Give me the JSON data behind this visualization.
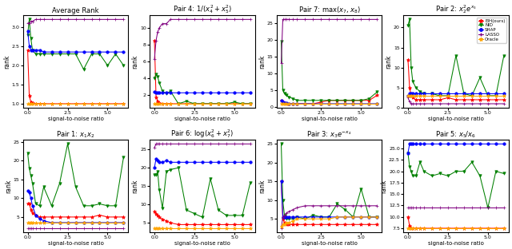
{
  "snr_values": [
    0.0,
    0.1,
    0.2,
    0.3,
    0.5,
    0.75,
    1.0,
    1.5,
    2.0,
    2.5,
    3.0,
    3.5,
    4.0,
    4.5,
    5.0,
    5.5,
    6.0
  ],
  "titles": [
    "Average Rank",
    "Pair 4: $1/(x_4^2 + x_5^2)$",
    "Pair 7: $\\max(x_7, x_8)$",
    "Pair 2: $x_2^2 e^{x_3}$",
    "Pair 1: $x_1 x_2$",
    "Pair 6: $\\log(x_6^2 + x_7^2)$",
    "Pair 3: $x_3 e^{-x_4}$",
    "Pair 5: $x_5/x_6$"
  ],
  "avg_rank": {
    "EIH": [
      2.4,
      1.2,
      1.05,
      1.02,
      1.0,
      1.0,
      1.0,
      1.0,
      1.0,
      1.0,
      1.0,
      1.0,
      1.0,
      1.0,
      1.0,
      1.0,
      1.0
    ],
    "NID": [
      2.8,
      3.2,
      2.7,
      2.4,
      2.3,
      2.3,
      2.3,
      2.3,
      2.3,
      2.3,
      2.3,
      1.9,
      2.3,
      2.3,
      2.0,
      2.3,
      2.0
    ],
    "SHAP": [
      2.9,
      2.5,
      2.4,
      2.4,
      2.4,
      2.4,
      2.35,
      2.35,
      2.35,
      2.35,
      2.35,
      2.35,
      2.35,
      2.35,
      2.35,
      2.35,
      2.35
    ],
    "LASSO": [
      3.1,
      3.1,
      3.15,
      3.15,
      3.2,
      3.2,
      3.2,
      3.2,
      3.2,
      3.2,
      3.2,
      3.2,
      3.2,
      3.2,
      3.2,
      3.2,
      3.2
    ],
    "Oracle": [
      1.0,
      1.0,
      1.0,
      1.0,
      1.0,
      1.0,
      1.0,
      1.0,
      1.0,
      1.0,
      1.0,
      1.0,
      1.0,
      1.0,
      1.0,
      1.0,
      1.0
    ]
  },
  "pair4": {
    "EIH": [
      8.5,
      1.8,
      1.3,
      1.1,
      1.0,
      1.0,
      1.0,
      1.0,
      1.0,
      1.0,
      1.0,
      1.0,
      1.0,
      1.0,
      1.0,
      1.0,
      1.0
    ],
    "NID": [
      4.0,
      4.5,
      4.2,
      3.5,
      2.5,
      2.2,
      2.5,
      1.0,
      1.3,
      1.0,
      1.0,
      1.0,
      1.0,
      1.0,
      1.2,
      1.0,
      1.0
    ],
    "SHAP": [
      2.4,
      2.3,
      2.3,
      2.3,
      2.3,
      2.3,
      2.3,
      2.3,
      2.3,
      2.3,
      2.3,
      2.3,
      2.3,
      2.3,
      2.3,
      2.3,
      2.3
    ],
    "LASSO": [
      6.3,
      8.5,
      9.5,
      10.0,
      10.5,
      10.5,
      11.0,
      11.0,
      11.0,
      11.0,
      11.0,
      11.0,
      11.0,
      11.0,
      11.0,
      11.0,
      11.0
    ],
    "Oracle": [
      1.0,
      1.0,
      1.0,
      1.0,
      1.0,
      1.0,
      1.0,
      1.0,
      1.0,
      1.0,
      1.0,
      1.0,
      1.0,
      1.0,
      1.0,
      1.0,
      1.0
    ]
  },
  "pair7": {
    "EIH": [
      2.0,
      1.5,
      1.2,
      1.0,
      1.0,
      1.0,
      1.0,
      1.0,
      1.0,
      1.5,
      2.0,
      2.0,
      2.0,
      2.0,
      2.0,
      2.0,
      3.5
    ],
    "NID": [
      19.5,
      5.0,
      4.0,
      3.5,
      3.0,
      2.5,
      2.0,
      2.0,
      2.0,
      2.0,
      2.0,
      2.0,
      2.0,
      2.0,
      2.0,
      2.5,
      4.5
    ],
    "SHAP": [
      2.0,
      1.5,
      1.3,
      1.2,
      1.1,
      1.0,
      1.0,
      1.0,
      1.0,
      1.0,
      1.0,
      1.0,
      1.0,
      1.0,
      1.0,
      1.0,
      1.0
    ],
    "LASSO": [
      13.0,
      26.0,
      26.0,
      26.0,
      26.0,
      26.0,
      26.0,
      26.0,
      26.0,
      26.0,
      26.0,
      26.0,
      26.0,
      26.0,
      26.0,
      26.0,
      26.0
    ],
    "Oracle": [
      1.0,
      1.0,
      1.0,
      1.0,
      1.0,
      1.0,
      1.0,
      1.0,
      1.0,
      1.0,
      1.0,
      1.0,
      1.0,
      1.0,
      1.0,
      1.0,
      1.0
    ]
  },
  "pair2": {
    "EIH": [
      12.0,
      5.0,
      3.0,
      2.5,
      2.0,
      2.0,
      2.0,
      2.0,
      2.0,
      2.5,
      2.0,
      2.0,
      2.0,
      2.0,
      2.0,
      2.0,
      2.0
    ],
    "NID": [
      20.5,
      22.0,
      10.0,
      6.5,
      5.0,
      4.0,
      3.5,
      3.5,
      3.0,
      3.0,
      13.0,
      3.5,
      3.0,
      7.5,
      3.0,
      3.0,
      13.0
    ],
    "SHAP": [
      3.0,
      3.5,
      3.5,
      3.5,
      3.5,
      3.5,
      3.5,
      3.5,
      3.5,
      3.5,
      3.5,
      3.5,
      3.5,
      3.5,
      3.5,
      3.5,
      3.5
    ],
    "LASSO": [
      2.5,
      1.5,
      1.0,
      1.0,
      1.0,
      1.0,
      1.0,
      1.0,
      1.0,
      1.0,
      1.0,
      1.0,
      1.0,
      1.0,
      1.0,
      1.0,
      1.0
    ],
    "Oracle": [
      3.0,
      3.0,
      3.0,
      3.0,
      3.0,
      3.0,
      3.0,
      3.0,
      3.0,
      3.0,
      3.0,
      3.0,
      3.0,
      3.0,
      3.0,
      3.0,
      3.0
    ]
  },
  "pair1": {
    "EIH": [
      8.5,
      8.5,
      7.0,
      6.0,
      5.5,
      5.0,
      5.0,
      5.0,
      5.0,
      5.0,
      5.0,
      5.0,
      5.0,
      5.5,
      5.0,
      5.0,
      5.0
    ],
    "NID": [
      22.0,
      18.0,
      16.0,
      14.0,
      8.5,
      8.0,
      13.0,
      8.0,
      14.0,
      24.5,
      13.0,
      8.0,
      8.0,
      8.5,
      8.0,
      8.0,
      21.0
    ],
    "SHAP": [
      12.0,
      11.5,
      10.0,
      8.0,
      5.5,
      4.5,
      4.0,
      3.5,
      3.5,
      3.5,
      3.5,
      3.5,
      3.5,
      3.5,
      3.5,
      3.5,
      3.5
    ],
    "LASSO": [
      2.0,
      2.0,
      2.0,
      2.0,
      2.0,
      2.0,
      2.0,
      2.0,
      2.0,
      2.0,
      2.0,
      2.0,
      2.0,
      2.0,
      2.0,
      2.0,
      2.0
    ],
    "Oracle": [
      3.5,
      3.5,
      3.5,
      3.5,
      3.5,
      3.5,
      3.5,
      3.5,
      3.5,
      3.5,
      3.5,
      3.5,
      3.5,
      3.5,
      3.5,
      3.5,
      3.5
    ]
  },
  "pair6": {
    "EIH": [
      8.0,
      7.5,
      7.0,
      6.5,
      6.0,
      5.5,
      5.0,
      4.5,
      4.5,
      4.5,
      4.5,
      4.5,
      4.5,
      4.5,
      4.5,
      4.5,
      4.5
    ],
    "NID": [
      18.0,
      18.0,
      19.0,
      14.0,
      9.0,
      19.0,
      19.5,
      20.0,
      8.5,
      7.5,
      6.5,
      17.0,
      8.5,
      7.0,
      7.0,
      7.0,
      16.0
    ],
    "SHAP": [
      20.0,
      22.5,
      22.0,
      21.5,
      21.5,
      22.0,
      21.5,
      21.5,
      21.5,
      21.5,
      21.5,
      21.5,
      21.5,
      21.5,
      21.5,
      21.5,
      21.5
    ],
    "LASSO": [
      25.5,
      26.5,
      26.5,
      26.5,
      26.5,
      26.5,
      26.5,
      26.5,
      26.5,
      26.5,
      26.5,
      26.5,
      26.5,
      26.5,
      26.5,
      26.5,
      26.5
    ],
    "Oracle": [
      3.5,
      3.5,
      3.5,
      3.5,
      3.5,
      3.5,
      3.5,
      3.5,
      3.5,
      3.5,
      3.5,
      3.5,
      3.5,
      3.5,
      3.5,
      3.5,
      3.5
    ]
  },
  "pair3": {
    "EIH": [
      15.0,
      5.0,
      4.0,
      3.5,
      3.5,
      3.5,
      3.5,
      3.5,
      3.5,
      3.5,
      3.5,
      3.5,
      3.5,
      3.5,
      3.5,
      3.5,
      3.5
    ],
    "NID": [
      25.0,
      10.0,
      6.0,
      5.0,
      5.0,
      5.0,
      5.5,
      5.0,
      6.0,
      5.5,
      5.5,
      9.0,
      7.5,
      5.5,
      13.0,
      5.5,
      5.5
    ],
    "SHAP": [
      15.0,
      5.5,
      5.5,
      5.5,
      5.5,
      5.5,
      5.5,
      5.5,
      5.5,
      5.5,
      5.5,
      5.5,
      5.5,
      5.5,
      5.5,
      5.5,
      5.5
    ],
    "LASSO": [
      2.5,
      5.5,
      6.0,
      6.5,
      7.0,
      7.5,
      8.0,
      8.5,
      8.5,
      8.5,
      8.5,
      8.5,
      8.5,
      8.5,
      8.5,
      8.5,
      8.5
    ],
    "Oracle": [
      3.0,
      3.5,
      3.5,
      4.0,
      4.0,
      4.5,
      5.0,
      5.0,
      5.0,
      5.0,
      5.0,
      5.5,
      5.5,
      5.5,
      5.5,
      5.5,
      5.5
    ]
  },
  "pair5": {
    "EIH": [
      10.0,
      8.0,
      7.5,
      7.5,
      7.5,
      7.5,
      7.5,
      7.5,
      7.5,
      7.5,
      7.5,
      7.5,
      7.5,
      7.5,
      7.5,
      7.5,
      7.5
    ],
    "NID": [
      24.0,
      21.0,
      20.0,
      19.0,
      19.0,
      22.0,
      20.0,
      19.0,
      19.5,
      19.0,
      20.0,
      20.0,
      22.0,
      19.0,
      12.0,
      20.0,
      19.5
    ],
    "SHAP": [
      24.0,
      26.0,
      26.0,
      26.0,
      26.0,
      26.0,
      26.0,
      26.0,
      26.0,
      26.0,
      26.0,
      26.0,
      26.0,
      26.0,
      26.0,
      26.0,
      26.0
    ],
    "LASSO": [
      12.0,
      12.0,
      12.0,
      12.0,
      12.0,
      12.0,
      12.0,
      12.0,
      12.0,
      12.0,
      12.0,
      12.0,
      12.0,
      12.0,
      12.0,
      12.0,
      12.0
    ],
    "Oracle": [
      7.5,
      7.5,
      7.5,
      7.5,
      7.5,
      7.5,
      7.5,
      7.5,
      7.5,
      7.5,
      7.5,
      7.5,
      7.5,
      7.5,
      7.5,
      7.5,
      7.5
    ]
  },
  "legend_labels": [
    "EIH(ours)",
    "NID",
    "SHAP",
    "LASSO",
    "Oracle"
  ],
  "legend_colors": [
    "red",
    "green",
    "blue",
    "purple",
    "orange"
  ],
  "legend_markers": [
    "*",
    "v",
    "o",
    "+",
    "*"
  ],
  "xlabel": "signal-to-noise ratio",
  "ylabel": "rank"
}
